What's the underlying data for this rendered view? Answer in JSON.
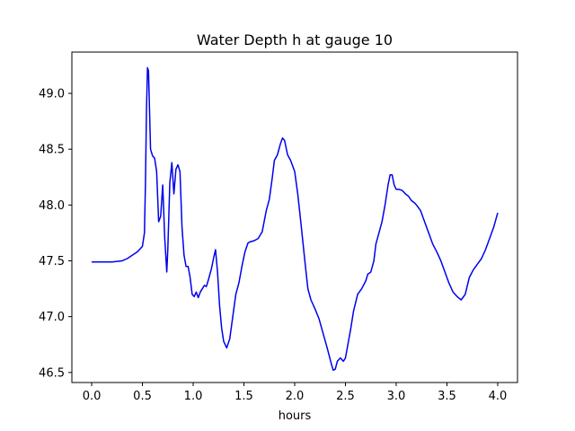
{
  "chart_data": {
    "type": "line",
    "title": "Water Depth h at gauge 10",
    "xlabel": "hours",
    "ylabel": "",
    "xlim": [
      -0.195,
      4.195
    ],
    "ylim": [
      46.41,
      49.37
    ],
    "xticks": [
      0.0,
      0.5,
      1.0,
      1.5,
      2.0,
      2.5,
      3.0,
      3.5,
      4.0
    ],
    "xtick_labels": [
      "0.0",
      "0.5",
      "1.0",
      "1.5",
      "2.0",
      "2.5",
      "3.0",
      "3.5",
      "4.0"
    ],
    "yticks": [
      46.5,
      47.0,
      47.5,
      48.0,
      48.5,
      49.0
    ],
    "ytick_labels": [
      "46.5",
      "47.0",
      "47.5",
      "48.0",
      "48.5",
      "49.0"
    ],
    "grid": false,
    "series": [
      {
        "color": "#0000ee",
        "x": [
          0.0,
          0.1,
          0.2,
          0.3,
          0.35,
          0.4,
          0.45,
          0.5,
          0.52,
          0.53,
          0.54,
          0.55,
          0.56,
          0.57,
          0.58,
          0.6,
          0.62,
          0.64,
          0.66,
          0.68,
          0.7,
          0.72,
          0.74,
          0.75,
          0.77,
          0.79,
          0.81,
          0.83,
          0.85,
          0.87,
          0.89,
          0.91,
          0.93,
          0.95,
          0.97,
          0.99,
          1.01,
          1.03,
          1.05,
          1.07,
          1.09,
          1.11,
          1.13,
          1.15,
          1.18,
          1.2,
          1.22,
          1.24,
          1.26,
          1.28,
          1.3,
          1.33,
          1.36,
          1.39,
          1.42,
          1.45,
          1.48,
          1.51,
          1.54,
          1.56,
          1.6,
          1.64,
          1.68,
          1.72,
          1.75,
          1.78,
          1.8,
          1.83,
          1.86,
          1.88,
          1.9,
          1.93,
          1.96,
          2.0,
          2.03,
          2.06,
          2.1,
          2.13,
          2.16,
          2.2,
          2.24,
          2.28,
          2.32,
          2.36,
          2.38,
          2.4,
          2.42,
          2.45,
          2.48,
          2.5,
          2.53,
          2.55,
          2.58,
          2.62,
          2.66,
          2.7,
          2.72,
          2.75,
          2.78,
          2.8,
          2.83,
          2.86,
          2.89,
          2.92,
          2.94,
          2.96,
          2.98,
          3.0,
          3.03,
          3.06,
          3.09,
          3.12,
          3.15,
          3.18,
          3.2,
          3.24,
          3.28,
          3.32,
          3.36,
          3.4,
          3.44,
          3.48,
          3.52,
          3.56,
          3.6,
          3.64,
          3.68,
          3.72,
          3.76,
          3.8,
          3.84,
          3.88,
          3.92,
          3.96,
          4.0
        ],
        "y": [
          47.49,
          47.49,
          47.49,
          47.5,
          47.52,
          47.55,
          47.58,
          47.63,
          47.75,
          48.2,
          48.85,
          49.23,
          49.2,
          48.85,
          48.5,
          48.44,
          48.42,
          48.3,
          47.85,
          47.9,
          48.18,
          47.7,
          47.4,
          47.6,
          48.2,
          48.38,
          48.1,
          48.32,
          48.36,
          48.3,
          47.8,
          47.55,
          47.45,
          47.45,
          47.35,
          47.2,
          47.18,
          47.22,
          47.17,
          47.22,
          47.25,
          47.28,
          47.27,
          47.33,
          47.43,
          47.52,
          47.6,
          47.4,
          47.1,
          46.9,
          46.78,
          46.72,
          46.8,
          47.0,
          47.2,
          47.3,
          47.45,
          47.58,
          47.66,
          47.67,
          47.68,
          47.7,
          47.76,
          47.95,
          48.05,
          48.25,
          48.4,
          48.45,
          48.55,
          48.6,
          48.58,
          48.45,
          48.4,
          48.3,
          48.1,
          47.85,
          47.5,
          47.25,
          47.15,
          47.07,
          46.98,
          46.85,
          46.72,
          46.58,
          46.52,
          46.53,
          46.6,
          46.63,
          46.6,
          46.63,
          46.78,
          46.88,
          47.05,
          47.2,
          47.25,
          47.32,
          47.38,
          47.4,
          47.5,
          47.65,
          47.75,
          47.85,
          48.0,
          48.18,
          48.27,
          48.27,
          48.18,
          48.14,
          48.14,
          48.13,
          48.1,
          48.08,
          48.04,
          48.02,
          48.0,
          47.95,
          47.85,
          47.75,
          47.65,
          47.58,
          47.5,
          47.4,
          47.3,
          47.22,
          47.18,
          47.15,
          47.2,
          47.35,
          47.42,
          47.47,
          47.52,
          47.6,
          47.7,
          47.8,
          47.93
        ]
      }
    ]
  }
}
